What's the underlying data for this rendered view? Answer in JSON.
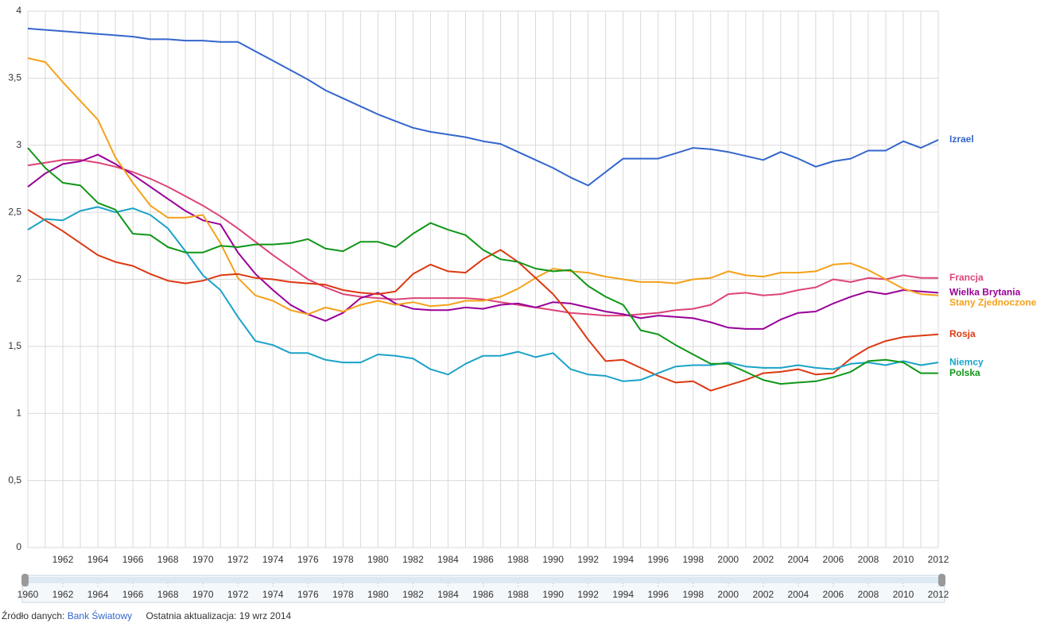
{
  "chart_data": {
    "type": "line",
    "x": [
      1960,
      1961,
      1962,
      1963,
      1964,
      1965,
      1966,
      1967,
      1968,
      1969,
      1970,
      1971,
      1972,
      1973,
      1974,
      1975,
      1976,
      1977,
      1978,
      1979,
      1980,
      1981,
      1982,
      1983,
      1984,
      1985,
      1986,
      1987,
      1988,
      1989,
      1990,
      1991,
      1992,
      1993,
      1994,
      1995,
      1996,
      1997,
      1998,
      1999,
      2000,
      2001,
      2002,
      2003,
      2004,
      2005,
      2006,
      2007,
      2008,
      2009,
      2010,
      2011,
      2012
    ],
    "xlim": [
      1960,
      2012
    ],
    "xticks": [
      1962,
      1964,
      1966,
      1968,
      1970,
      1972,
      1974,
      1976,
      1978,
      1980,
      1982,
      1984,
      1986,
      1988,
      1990,
      1992,
      1994,
      1996,
      1998,
      2000,
      2002,
      2004,
      2006,
      2008,
      2010,
      2012
    ],
    "ylim": [
      0,
      4
    ],
    "yticks": [
      0,
      {
        "value": 0.5,
        "label": "0,5"
      },
      1,
      {
        "value": 1.5,
        "label": "1,5"
      },
      2,
      {
        "value": 2.5,
        "label": "2,5"
      },
      3,
      {
        "value": 3.5,
        "label": "3,5"
      },
      4
    ],
    "grid": true,
    "series": [
      {
        "name": "Izrael",
        "color": "#3366cc",
        "values": [
          3.87,
          3.86,
          3.85,
          3.84,
          3.83,
          3.82,
          3.81,
          3.79,
          3.79,
          3.78,
          3.78,
          3.77,
          3.77,
          3.7,
          3.63,
          3.56,
          3.49,
          3.41,
          3.35,
          3.29,
          3.23,
          3.18,
          3.13,
          3.1,
          3.08,
          3.06,
          3.03,
          3.01,
          2.95,
          2.89,
          2.83,
          2.76,
          2.7,
          2.8,
          2.9,
          2.9,
          2.9,
          2.94,
          2.98,
          2.97,
          2.95,
          2.92,
          2.89,
          2.95,
          2.9,
          2.84,
          2.88,
          2.9,
          2.96,
          2.96,
          3.03,
          2.98,
          3.04
        ]
      },
      {
        "name": "Francja",
        "color": "#dd4477",
        "values": [
          2.85,
          2.87,
          2.89,
          2.89,
          2.87,
          2.84,
          2.8,
          2.75,
          2.69,
          2.62,
          2.55,
          2.47,
          2.38,
          2.28,
          2.18,
          2.09,
          2.0,
          1.94,
          1.89,
          1.87,
          1.86,
          1.85,
          1.86,
          1.86,
          1.86,
          1.86,
          1.85,
          1.83,
          1.81,
          1.79,
          1.77,
          1.75,
          1.74,
          1.73,
          1.73,
          1.74,
          1.75,
          1.77,
          1.78,
          1.81,
          1.89,
          1.9,
          1.88,
          1.89,
          1.92,
          1.94,
          2.0,
          1.98,
          2.01,
          2.0,
          2.03,
          2.01,
          2.01
        ]
      },
      {
        "name": "Wielka Brytania",
        "color": "#990099",
        "values": [
          2.69,
          2.79,
          2.86,
          2.88,
          2.93,
          2.86,
          2.78,
          2.69,
          2.6,
          2.51,
          2.44,
          2.41,
          2.2,
          2.04,
          1.92,
          1.81,
          1.74,
          1.69,
          1.75,
          1.86,
          1.9,
          1.82,
          1.78,
          1.77,
          1.77,
          1.79,
          1.78,
          1.81,
          1.82,
          1.79,
          1.83,
          1.82,
          1.79,
          1.76,
          1.74,
          1.71,
          1.73,
          1.72,
          1.71,
          1.68,
          1.64,
          1.63,
          1.63,
          1.7,
          1.75,
          1.76,
          1.82,
          1.87,
          1.91,
          1.89,
          1.92,
          1.91,
          1.9
        ]
      },
      {
        "name": "Stany Zjednoczone",
        "color": "#f4a11a",
        "values": [
          3.65,
          3.62,
          3.47,
          3.33,
          3.19,
          2.91,
          2.72,
          2.55,
          2.46,
          2.46,
          2.48,
          2.27,
          2.01,
          1.88,
          1.84,
          1.77,
          1.74,
          1.79,
          1.76,
          1.81,
          1.84,
          1.81,
          1.83,
          1.8,
          1.81,
          1.84,
          1.84,
          1.87,
          1.93,
          2.01,
          2.08,
          2.06,
          2.05,
          2.02,
          2.0,
          1.98,
          1.98,
          1.97,
          2.0,
          2.01,
          2.06,
          2.03,
          2.02,
          2.05,
          2.05,
          2.06,
          2.11,
          2.12,
          2.07,
          2.0,
          1.93,
          1.89,
          1.88
        ]
      },
      {
        "name": "Rosja",
        "color": "#dc3912",
        "values": [
          2.52,
          2.44,
          2.36,
          2.27,
          2.18,
          2.13,
          2.1,
          2.04,
          1.99,
          1.97,
          1.99,
          2.03,
          2.04,
          2.01,
          2.0,
          1.98,
          1.97,
          1.96,
          1.92,
          1.9,
          1.89,
          1.91,
          2.04,
          2.11,
          2.06,
          2.05,
          2.15,
          2.22,
          2.13,
          2.01,
          1.89,
          1.73,
          1.55,
          1.39,
          1.4,
          1.34,
          1.28,
          1.23,
          1.24,
          1.17,
          1.21,
          1.25,
          1.3,
          1.31,
          1.33,
          1.29,
          1.3,
          1.41,
          1.49,
          1.54,
          1.57,
          1.58,
          1.59
        ]
      },
      {
        "name": "Niemcy",
        "color": "#1aa3c8",
        "values": [
          2.37,
          2.45,
          2.44,
          2.51,
          2.54,
          2.5,
          2.53,
          2.48,
          2.38,
          2.21,
          2.03,
          1.92,
          1.72,
          1.54,
          1.51,
          1.45,
          1.45,
          1.4,
          1.38,
          1.38,
          1.44,
          1.43,
          1.41,
          1.33,
          1.29,
          1.37,
          1.43,
          1.43,
          1.46,
          1.42,
          1.45,
          1.33,
          1.29,
          1.28,
          1.24,
          1.25,
          1.3,
          1.35,
          1.36,
          1.36,
          1.38,
          1.35,
          1.34,
          1.34,
          1.36,
          1.34,
          1.33,
          1.37,
          1.38,
          1.36,
          1.39,
          1.36,
          1.38
        ]
      },
      {
        "name": "Polska",
        "color": "#109618",
        "values": [
          2.98,
          2.83,
          2.72,
          2.7,
          2.57,
          2.52,
          2.34,
          2.33,
          2.24,
          2.2,
          2.2,
          2.25,
          2.24,
          2.26,
          2.26,
          2.27,
          2.3,
          2.23,
          2.21,
          2.28,
          2.28,
          2.24,
          2.34,
          2.42,
          2.37,
          2.33,
          2.22,
          2.15,
          2.13,
          2.08,
          2.06,
          2.07,
          1.95,
          1.87,
          1.81,
          1.62,
          1.59,
          1.51,
          1.44,
          1.37,
          1.37,
          1.31,
          1.25,
          1.22,
          1.23,
          1.24,
          1.27,
          1.31,
          1.39,
          1.4,
          1.38,
          1.3,
          1.3
        ]
      }
    ]
  },
  "footer": {
    "source_label": "Źródło danych:",
    "source": "Bank Światowy",
    "updated": "Ostatnia aktualizacja: 19 wrz 2014"
  }
}
